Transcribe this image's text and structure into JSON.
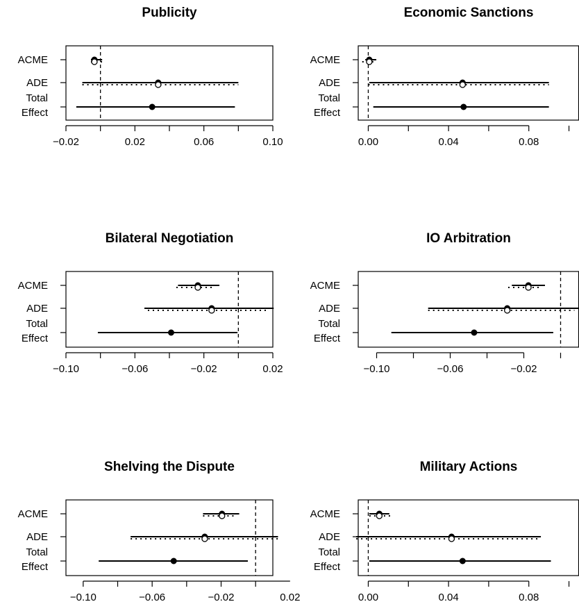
{
  "chart_data": [
    {
      "type": "interval",
      "title": "Publicity",
      "xlim": [
        -0.02,
        0.1
      ],
      "xticks": [
        -0.02,
        0.02,
        0.06,
        0.1
      ],
      "xtick_labels": [
        "−0.02",
        "0.02",
        "0.06",
        "0.10"
      ],
      "reference_line": 0,
      "rows": [
        {
          "label_lines": [
            "ACME"
          ],
          "solid": {
            "est": -0.0035,
            "lo": -0.0055,
            "hi": 0.001
          },
          "dotted": {
            "est": -0.0035,
            "lo": -0.0055,
            "hi": 0.001
          }
        },
        {
          "label_lines": [
            "ADE"
          ],
          "solid": {
            "est": 0.0335,
            "lo": -0.0105,
            "hi": 0.08
          },
          "dotted": {
            "est": 0.0335,
            "lo": -0.0105,
            "hi": 0.08
          }
        },
        {
          "label_lines": [
            "Total",
            "Effect"
          ],
          "solid": {
            "est": 0.03,
            "lo": -0.014,
            "hi": 0.078
          }
        }
      ]
    },
    {
      "type": "interval",
      "title": "Economic Sanctions",
      "xlim": [
        -0.005,
        0.105
      ],
      "xticks": [
        0.0,
        0.04,
        0.08
      ],
      "xtick_labels": [
        "0.00",
        "0.04",
        "0.08"
      ],
      "reference_line": 0,
      "rows": [
        {
          "label_lines": [
            "ACME"
          ],
          "solid": {
            "est": 0.0005,
            "lo": -0.0015,
            "hi": 0.004
          },
          "dotted": {
            "est": 0.0005,
            "lo": -0.003,
            "hi": 0.004
          }
        },
        {
          "label_lines": [
            "ADE"
          ],
          "solid": {
            "est": 0.047,
            "lo": 0.0005,
            "hi": 0.09
          },
          "dotted": {
            "est": 0.047,
            "lo": 0.0,
            "hi": 0.09
          }
        },
        {
          "label_lines": [
            "Total",
            "Effect"
          ],
          "solid": {
            "est": 0.0475,
            "lo": 0.0025,
            "hi": 0.09
          }
        }
      ]
    },
    {
      "type": "interval",
      "title": "Bilateral Negotiation",
      "xlim": [
        -0.1,
        0.02
      ],
      "xticks": [
        -0.1,
        -0.06,
        -0.02,
        0.02
      ],
      "xtick_labels": [
        "−0.10",
        "−0.06",
        "−0.02",
        "0.02"
      ],
      "reference_line": 0,
      "rows": [
        {
          "label_lines": [
            "ACME"
          ],
          "solid": {
            "est": -0.0235,
            "lo": -0.035,
            "hi": -0.011
          },
          "dotted": {
            "est": -0.0235,
            "lo": -0.036,
            "hi": -0.014
          }
        },
        {
          "label_lines": [
            "ADE"
          ],
          "solid": {
            "est": -0.0155,
            "lo": -0.0545,
            "hi": 0.0205
          },
          "dotted": {
            "est": -0.0155,
            "lo": -0.0525,
            "hi": 0.0175
          }
        },
        {
          "label_lines": [
            "Total",
            "Effect"
          ],
          "solid": {
            "est": -0.039,
            "lo": -0.0815,
            "hi": -0.0005
          }
        }
      ]
    },
    {
      "type": "interval",
      "title": "IO Arbitration",
      "xlim": [
        -0.11,
        0.01
      ],
      "xticks": [
        -0.1,
        -0.06,
        -0.02
      ],
      "xtick_labels": [
        "−0.10",
        "−0.06",
        "−0.02"
      ],
      "reference_line": 0,
      "rows": [
        {
          "label_lines": [
            "ACME"
          ],
          "solid": {
            "est": -0.0175,
            "lo": -0.0265,
            "hi": -0.0085
          },
          "dotted": {
            "est": -0.0175,
            "lo": -0.0285,
            "hi": -0.0105
          }
        },
        {
          "label_lines": [
            "ADE"
          ],
          "solid": {
            "est": -0.029,
            "lo": -0.072,
            "hi": 0.0115
          },
          "dotted": {
            "est": -0.029,
            "lo": -0.072,
            "hi": 0.0075
          }
        },
        {
          "label_lines": [
            "Total",
            "Effect"
          ],
          "solid": {
            "est": -0.047,
            "lo": -0.092,
            "hi": -0.004
          }
        }
      ]
    },
    {
      "type": "interval",
      "title": "Shelving the Dispute",
      "xlim": [
        -0.11,
        0.01
      ],
      "xticks": [
        -0.1,
        -0.06,
        -0.02,
        0.02
      ],
      "xtick_labels": [
        "−0.10",
        "−0.06",
        "−0.02",
        "0.02"
      ],
      "reference_line": 0,
      "rows": [
        {
          "label_lines": [
            "ACME"
          ],
          "solid": {
            "est": -0.0195,
            "lo": -0.0305,
            "hi": -0.0095
          },
          "dotted": {
            "est": -0.0195,
            "lo": -0.0305,
            "hi": -0.0125
          }
        },
        {
          "label_lines": [
            "ADE"
          ],
          "solid": {
            "est": -0.0295,
            "lo": -0.0725,
            "hi": 0.013
          },
          "dotted": {
            "est": -0.0295,
            "lo": -0.0725,
            "hi": 0.013
          }
        },
        {
          "label_lines": [
            "Total",
            "Effect"
          ],
          "solid": {
            "est": -0.0475,
            "lo": -0.091,
            "hi": -0.0045
          }
        }
      ]
    },
    {
      "type": "interval",
      "title": "Military Actions",
      "xlim": [
        -0.005,
        0.105
      ],
      "xticks": [
        0.0,
        0.04,
        0.08
      ],
      "xtick_labels": [
        "0.00",
        "0.04",
        "0.08"
      ],
      "reference_line": 0,
      "rows": [
        {
          "label_lines": [
            "ACME"
          ],
          "solid": {
            "est": 0.0055,
            "lo": 0.0005,
            "hi": 0.0105
          },
          "dotted": {
            "est": 0.0055,
            "lo": 0.0005,
            "hi": 0.011
          }
        },
        {
          "label_lines": [
            "ADE"
          ],
          "solid": {
            "est": 0.0415,
            "lo": -0.006,
            "hi": 0.086
          },
          "dotted": {
            "est": 0.0415,
            "lo": -0.006,
            "hi": 0.086
          }
        },
        {
          "label_lines": [
            "Total",
            "Effect"
          ],
          "solid": {
            "est": 0.047,
            "lo": 0.0005,
            "hi": 0.091
          }
        }
      ]
    }
  ]
}
